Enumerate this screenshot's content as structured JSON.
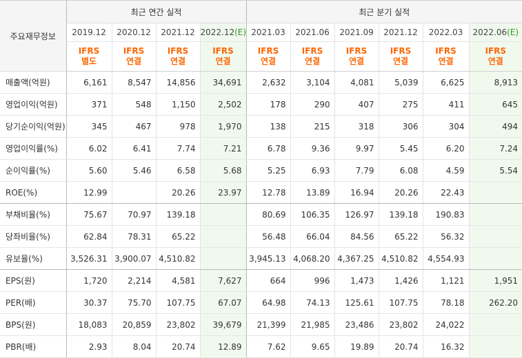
{
  "header": {
    "corner_label": "주요재무정보",
    "annual_group": "최근 연간 실적",
    "quarterly_group": "최근 분기 실적"
  },
  "colors": {
    "basis": "#ff6600",
    "estimate_bg": "#f1f9ee",
    "estimate_tag": "#3a8f2e"
  },
  "periods": [
    {
      "label": "2019.12",
      "est": "",
      "basis1": "IFRS",
      "basis2": "별도"
    },
    {
      "label": "2020.12",
      "est": "",
      "basis1": "IFRS",
      "basis2": "연결"
    },
    {
      "label": "2021.12",
      "est": "",
      "basis1": "IFRS",
      "basis2": "연결"
    },
    {
      "label": "2022.12",
      "est": "(E)",
      "basis1": "IFRS",
      "basis2": "연결"
    },
    {
      "label": "2021.03",
      "est": "",
      "basis1": "IFRS",
      "basis2": "연결"
    },
    {
      "label": "2021.06",
      "est": "",
      "basis1": "IFRS",
      "basis2": "연결"
    },
    {
      "label": "2021.09",
      "est": "",
      "basis1": "IFRS",
      "basis2": "연결"
    },
    {
      "label": "2021.12",
      "est": "",
      "basis1": "IFRS",
      "basis2": "연결"
    },
    {
      "label": "2022.03",
      "est": "",
      "basis1": "IFRS",
      "basis2": "연결"
    },
    {
      "label": "2022.06",
      "est": "(E)",
      "basis1": "IFRS",
      "basis2": "연결"
    }
  ],
  "rows": [
    {
      "label": "매출액(억원)",
      "values": [
        "6,161",
        "8,547",
        "14,856",
        "34,691",
        "2,632",
        "3,104",
        "4,081",
        "5,039",
        "6,625",
        "8,913"
      ]
    },
    {
      "label": "영업이익(억원)",
      "values": [
        "371",
        "548",
        "1,150",
        "2,502",
        "178",
        "290",
        "407",
        "275",
        "411",
        "645"
      ]
    },
    {
      "label": "당기순이익(억원)",
      "values": [
        "345",
        "467",
        "978",
        "1,970",
        "138",
        "215",
        "318",
        "306",
        "304",
        "494"
      ]
    },
    {
      "label": "영업이익률(%)",
      "values": [
        "6.02",
        "6.41",
        "7.74",
        "7.21",
        "6.78",
        "9.36",
        "9.97",
        "5.45",
        "6.20",
        "7.24"
      ]
    },
    {
      "label": "순이익률(%)",
      "values": [
        "5.60",
        "5.46",
        "6.58",
        "5.68",
        "5.25",
        "6.93",
        "7.79",
        "6.08",
        "4.59",
        "5.54"
      ]
    },
    {
      "label": "ROE(%)",
      "values": [
        "12.99",
        "",
        "20.26",
        "23.97",
        "12.78",
        "13.89",
        "16.94",
        "20.26",
        "22.43",
        ""
      ]
    },
    {
      "label": "부채비율(%)",
      "values": [
        "75.67",
        "70.97",
        "139.18",
        "",
        "80.69",
        "106.35",
        "126.97",
        "139.18",
        "190.83",
        ""
      ]
    },
    {
      "label": "당좌비율(%)",
      "values": [
        "62.84",
        "78.31",
        "65.22",
        "",
        "56.48",
        "66.04",
        "84.56",
        "65.22",
        "56.32",
        ""
      ]
    },
    {
      "label": "유보율(%)",
      "values": [
        "3,526.31",
        "3,900.07",
        "4,510.82",
        "",
        "3,945.13",
        "4,068.20",
        "4,367.25",
        "4,510.82",
        "4,554.93",
        ""
      ]
    },
    {
      "label": "EPS(원)",
      "values": [
        "1,720",
        "2,214",
        "4,581",
        "7,627",
        "664",
        "996",
        "1,473",
        "1,426",
        "1,121",
        "1,951"
      ]
    },
    {
      "label": "PER(배)",
      "values": [
        "30.37",
        "75.70",
        "107.75",
        "67.07",
        "64.98",
        "74.13",
        "125.61",
        "107.75",
        "78.18",
        "262.20"
      ]
    },
    {
      "label": "BPS(원)",
      "values": [
        "18,083",
        "20,859",
        "23,802",
        "39,679",
        "21,399",
        "21,985",
        "23,486",
        "23,802",
        "24,022",
        ""
      ]
    },
    {
      "label": "PBR(배)",
      "values": [
        "2.93",
        "8.04",
        "20.74",
        "12.89",
        "7.62",
        "9.65",
        "19.89",
        "20.74",
        "16.32",
        ""
      ]
    }
  ]
}
